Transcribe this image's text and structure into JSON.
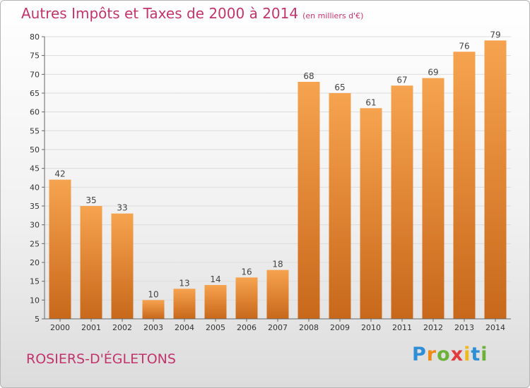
{
  "header": {
    "title": "Autres Impôts et Taxes de 2000 à 2014",
    "subtitle": "(en milliers d'€)"
  },
  "footer": {
    "location": "ROSIERS-D'ÉGLETONS",
    "logo_letters": [
      {
        "char": "P",
        "color": "#2f8fd6"
      },
      {
        "char": "r",
        "color": "#f08a17"
      },
      {
        "char": "o",
        "color": "#6cb23a"
      },
      {
        "char": "x",
        "color": "#e33b3b"
      },
      {
        "char": "i",
        "color": "#f0b818"
      },
      {
        "char": "t",
        "color": "#2f8fd6"
      },
      {
        "char": "i",
        "color": "#6cb23a"
      }
    ]
  },
  "colors": {
    "title": "#c1356b",
    "bar_light": "#f6a34f",
    "bar_dark": "#c8681a",
    "grid": "#dcdcdc",
    "axis": "#666666"
  },
  "chart_data": {
    "type": "bar",
    "categories": [
      "2000",
      "2001",
      "2002",
      "2003",
      "2004",
      "2005",
      "2006",
      "2007",
      "2008",
      "2009",
      "2010",
      "2011",
      "2012",
      "2013",
      "2014"
    ],
    "values": [
      42,
      35,
      33,
      10,
      13,
      14,
      16,
      18,
      68,
      65,
      61,
      67,
      69,
      76,
      79
    ],
    "ylim": [
      5,
      80
    ],
    "yticks": [
      5,
      10,
      15,
      20,
      25,
      30,
      35,
      40,
      45,
      50,
      55,
      60,
      65,
      70,
      75,
      80
    ],
    "grid": true,
    "data_labels": true
  }
}
